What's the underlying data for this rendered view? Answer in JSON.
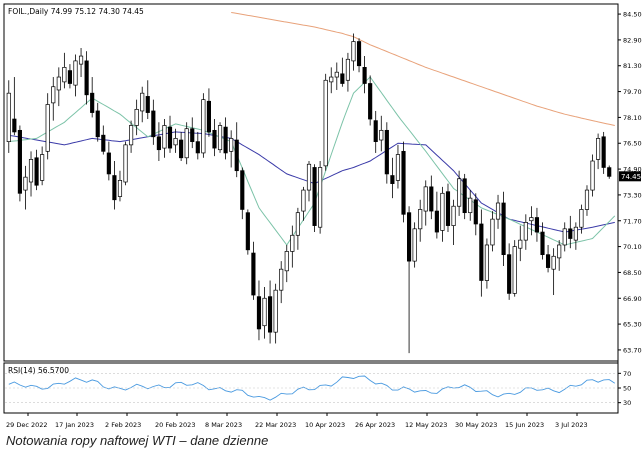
{
  "chart_header": "FOIL.,Daily  74.99 75.12 74.30 74.45",
  "caption": "Notowania ropy naftowej WTI – dane dzienne",
  "rsi_label": "RSI(14) 56.5700",
  "colors": {
    "bull_candle": "#ffffff",
    "bear_candle": "#000000",
    "candle_edge": "#000000",
    "ma_orange": "#e8a27a",
    "ma_blue": "#3a3aa8",
    "ma_teal": "#7cc3a8",
    "rsi_line": "#4a9ae0",
    "current_price_box": "#000000"
  },
  "chart_data": [
    {
      "type": "candlestick",
      "x_ticks": [
        "29 Dec 2022",
        "17 Jan 2023",
        "2 Feb 2023",
        "20 Feb 2023",
        "8 Mar 2023",
        "22 Mar 2023",
        "10 Apr 2023",
        "26 Apr 2023",
        "12 May 2023",
        "30 May 2023",
        "15 Jun 2023",
        "3 Jul 2023"
      ],
      "y_ticks": [
        "84.50",
        "82.90",
        "81.30",
        "79.70",
        "78.10",
        "76.50",
        "74.90",
        "73.30",
        "71.70",
        "70.10",
        "68.50",
        "66.90",
        "65.30",
        "63.70"
      ],
      "ylim": [
        63.2,
        85.0
      ],
      "current_price": "74.45",
      "ohlc": [
        [
          76.6,
          80.4,
          75.9,
          79.6
        ],
        [
          78.0,
          80.6,
          77.0,
          77.2
        ],
        [
          77.3,
          77.6,
          72.9,
          73.4
        ],
        [
          73.6,
          75.1,
          72.4,
          74.4
        ],
        [
          74.1,
          76.0,
          73.2,
          75.5
        ],
        [
          75.6,
          76.1,
          73.6,
          73.9
        ],
        [
          74.2,
          76.3,
          73.9,
          75.8
        ],
        [
          76.0,
          79.6,
          75.5,
          78.9
        ],
        [
          79.0,
          80.6,
          77.9,
          80.0
        ],
        [
          79.8,
          81.2,
          78.8,
          80.6
        ],
        [
          80.3,
          82.1,
          79.9,
          81.2
        ],
        [
          81.0,
          81.4,
          79.9,
          80.2
        ],
        [
          80.1,
          82.0,
          79.4,
          81.6
        ],
        [
          81.4,
          82.4,
          80.6,
          81.9
        ],
        [
          81.6,
          82.2,
          78.9,
          79.5
        ],
        [
          79.6,
          80.6,
          78.1,
          78.4
        ],
        [
          78.5,
          79.0,
          76.6,
          76.9
        ],
        [
          77.0,
          77.6,
          75.8,
          76.0
        ],
        [
          75.9,
          76.6,
          74.2,
          74.6
        ],
        [
          74.5,
          75.4,
          72.4,
          73.0
        ],
        [
          73.2,
          74.8,
          72.9,
          74.2
        ],
        [
          74.1,
          76.6,
          73.9,
          76.4
        ],
        [
          76.4,
          77.9,
          75.9,
          77.6
        ],
        [
          77.6,
          79.2,
          77.0,
          78.6
        ],
        [
          78.5,
          80.0,
          77.8,
          79.6
        ],
        [
          79.4,
          80.4,
          78.0,
          78.4
        ],
        [
          78.5,
          79.2,
          76.4,
          76.9
        ],
        [
          76.9,
          77.8,
          75.4,
          76.1
        ],
        [
          76.2,
          78.0,
          75.6,
          77.6
        ],
        [
          77.5,
          78.2,
          75.9,
          76.2
        ],
        [
          76.4,
          77.4,
          75.9,
          76.8
        ],
        [
          76.7,
          77.2,
          75.4,
          75.6
        ],
        [
          75.6,
          77.8,
          75.2,
          77.4
        ],
        [
          77.4,
          78.1,
          76.2,
          76.6
        ],
        [
          76.6,
          77.2,
          75.5,
          75.9
        ],
        [
          75.9,
          79.6,
          75.6,
          79.2
        ],
        [
          79.1,
          79.9,
          76.9,
          77.2
        ],
        [
          77.3,
          78.0,
          75.7,
          76.2
        ],
        [
          76.1,
          77.8,
          75.9,
          77.6
        ],
        [
          77.5,
          78.1,
          75.5,
          75.9
        ],
        [
          76.0,
          77.3,
          75.0,
          76.8
        ],
        [
          76.7,
          77.8,
          74.4,
          74.8
        ],
        [
          74.8,
          75.0,
          71.8,
          72.4
        ],
        [
          72.2,
          72.4,
          69.6,
          69.9
        ],
        [
          69.7,
          70.4,
          66.8,
          67.1
        ],
        [
          67.0,
          68.0,
          64.3,
          65.0
        ],
        [
          65.2,
          67.6,
          64.4,
          66.9
        ],
        [
          67.0,
          68.0,
          64.1,
          64.8
        ],
        [
          64.8,
          67.8,
          64.1,
          67.4
        ],
        [
          67.4,
          69.2,
          66.6,
          68.7
        ],
        [
          68.6,
          70.2,
          67.9,
          69.8
        ],
        [
          69.8,
          71.4,
          68.8,
          70.8
        ],
        [
          70.8,
          72.5,
          69.9,
          72.2
        ],
        [
          72.3,
          73.8,
          71.7,
          73.6
        ],
        [
          73.6,
          75.4,
          72.9,
          75.2
        ],
        [
          75.0,
          75.2,
          71.0,
          71.4
        ],
        [
          71.3,
          75.4,
          70.9,
          75.0
        ],
        [
          75.1,
          80.8,
          74.8,
          80.4
        ],
        [
          80.3,
          81.2,
          79.6,
          80.6
        ],
        [
          80.6,
          81.5,
          79.8,
          80.9
        ],
        [
          80.8,
          81.8,
          80.0,
          80.2
        ],
        [
          80.4,
          82.1,
          79.7,
          81.7
        ],
        [
          81.6,
          83.3,
          81.0,
          82.8
        ],
        [
          82.8,
          83.0,
          80.9,
          81.3
        ],
        [
          81.2,
          81.9,
          79.6,
          80.2
        ],
        [
          80.2,
          80.7,
          77.6,
          78.0
        ],
        [
          77.9,
          78.5,
          75.9,
          76.6
        ],
        [
          76.7,
          78.2,
          76.0,
          77.3
        ],
        [
          77.3,
          77.8,
          74.0,
          74.6
        ],
        [
          74.5,
          75.6,
          73.1,
          74.0
        ],
        [
          74.2,
          76.4,
          73.7,
          75.8
        ],
        [
          76.0,
          76.6,
          71.6,
          72.1
        ],
        [
          72.2,
          72.6,
          63.5,
          69.2
        ],
        [
          69.2,
          71.6,
          68.8,
          71.2
        ],
        [
          71.2,
          73.0,
          70.4,
          72.4
        ],
        [
          72.3,
          74.2,
          71.4,
          73.8
        ],
        [
          73.8,
          74.5,
          71.8,
          72.3
        ],
        [
          72.3,
          73.5,
          70.6,
          71.0
        ],
        [
          71.1,
          73.8,
          70.4,
          73.4
        ],
        [
          73.5,
          74.0,
          71.0,
          71.4
        ],
        [
          71.4,
          73.0,
          70.2,
          72.6
        ],
        [
          72.6,
          74.8,
          72.0,
          74.3
        ],
        [
          74.3,
          74.6,
          71.8,
          72.2
        ],
        [
          72.2,
          73.6,
          71.7,
          73.1
        ],
        [
          73.0,
          73.4,
          70.8,
          71.5
        ],
        [
          71.5,
          72.4,
          67.0,
          68.0
        ],
        [
          68.0,
          70.6,
          67.5,
          70.2
        ],
        [
          70.2,
          72.3,
          69.8,
          71.8
        ],
        [
          71.8,
          73.3,
          71.2,
          72.8
        ],
        [
          72.8,
          73.5,
          68.9,
          69.6
        ],
        [
          69.6,
          70.3,
          66.8,
          67.2
        ],
        [
          67.2,
          70.5,
          67.0,
          70.1
        ],
        [
          70.0,
          71.4,
          69.2,
          70.5
        ],
        [
          70.5,
          72.1,
          69.9,
          71.6
        ],
        [
          71.7,
          72.6,
          70.8,
          71.9
        ],
        [
          71.9,
          72.5,
          70.4,
          71.0
        ],
        [
          71.0,
          71.6,
          69.3,
          69.6
        ],
        [
          69.6,
          70.2,
          68.5,
          68.8
        ],
        [
          68.7,
          70.0,
          67.1,
          69.5
        ],
        [
          69.4,
          70.5,
          68.6,
          70.2
        ],
        [
          70.2,
          71.6,
          69.8,
          71.2
        ],
        [
          71.2,
          72.0,
          70.0,
          70.6
        ],
        [
          70.5,
          71.6,
          69.9,
          71.3
        ],
        [
          71.3,
          72.7,
          70.9,
          72.4
        ],
        [
          72.4,
          73.9,
          72.0,
          73.6
        ],
        [
          73.6,
          75.8,
          73.2,
          75.4
        ],
        [
          75.5,
          77.1,
          74.9,
          76.8
        ],
        [
          76.9,
          77.2,
          74.6,
          75.0
        ],
        [
          74.99,
          75.12,
          74.3,
          74.45
        ]
      ],
      "moving_averages": [
        {
          "color": "ma_orange",
          "anchors": [
            [
              40,
              84.6
            ],
            [
              45,
              84.3
            ],
            [
              50,
              84.0
            ],
            [
              55,
              83.7
            ],
            [
              60,
              83.3
            ],
            [
              62,
              83.1
            ],
            [
              65,
              82.6
            ],
            [
              70,
              81.9
            ],
            [
              75,
              81.2
            ],
            [
              80,
              80.6
            ],
            [
              85,
              80.0
            ],
            [
              90,
              79.4
            ],
            [
              95,
              78.8
            ],
            [
              100,
              78.3
            ],
            [
              105,
              77.9
            ],
            [
              109,
              77.6
            ]
          ]
        },
        {
          "color": "ma_blue",
          "anchors": [
            [
              0,
              77.0
            ],
            [
              5,
              76.7
            ],
            [
              10,
              76.4
            ],
            [
              15,
              76.8
            ],
            [
              20,
              76.6
            ],
            [
              25,
              76.9
            ],
            [
              30,
              77.2
            ],
            [
              35,
              77.1
            ],
            [
              40,
              76.8
            ],
            [
              45,
              75.8
            ],
            [
              50,
              74.6
            ],
            [
              55,
              74.0
            ],
            [
              60,
              74.8
            ],
            [
              62,
              75.0
            ],
            [
              65,
              75.4
            ],
            [
              70,
              76.5
            ],
            [
              75,
              76.4
            ],
            [
              80,
              74.8
            ],
            [
              85,
              72.8
            ],
            [
              90,
              71.8
            ],
            [
              95,
              71.4
            ],
            [
              100,
              71.0
            ],
            [
              105,
              71.3
            ],
            [
              109,
              71.6
            ]
          ]
        },
        {
          "color": "ma_teal",
          "anchors": [
            [
              0,
              76.6
            ],
            [
              5,
              76.8
            ],
            [
              10,
              77.8
            ],
            [
              15,
              79.3
            ],
            [
              20,
              78.3
            ],
            [
              25,
              76.9
            ],
            [
              30,
              77.7
            ],
            [
              35,
              77.3
            ],
            [
              40,
              76.6
            ],
            [
              45,
              72.5
            ],
            [
              50,
              70.2
            ],
            [
              55,
              72.8
            ],
            [
              60,
              77.8
            ],
            [
              62,
              79.6
            ],
            [
              65,
              80.6
            ],
            [
              70,
              78.2
            ],
            [
              75,
              76.0
            ],
            [
              80,
              73.7
            ],
            [
              85,
              72.5
            ],
            [
              90,
              71.8
            ],
            [
              95,
              71.0
            ],
            [
              100,
              70.2
            ],
            [
              105,
              70.6
            ],
            [
              109,
              72.0
            ]
          ]
        }
      ]
    },
    {
      "type": "line",
      "series": [
        {
          "name": "RSI(14)",
          "values_note": ""
        }
      ],
      "y_ticks": [
        "70",
        "50",
        "30"
      ],
      "ylim": [
        20,
        80
      ],
      "rsi_anchors": [
        [
          0,
          55
        ],
        [
          5,
          50
        ],
        [
          10,
          58
        ],
        [
          15,
          60
        ],
        [
          20,
          48
        ],
        [
          25,
          52
        ],
        [
          30,
          55
        ],
        [
          35,
          53
        ],
        [
          40,
          47
        ],
        [
          45,
          36
        ],
        [
          50,
          42
        ],
        [
          55,
          50
        ],
        [
          60,
          62
        ],
        [
          62,
          64
        ],
        [
          65,
          62
        ],
        [
          70,
          48
        ],
        [
          75,
          44
        ],
        [
          80,
          52
        ],
        [
          85,
          46
        ],
        [
          90,
          40
        ],
        [
          95,
          50
        ],
        [
          100,
          47
        ],
        [
          105,
          60
        ],
        [
          107,
          64
        ],
        [
          109,
          56.57
        ]
      ]
    }
  ]
}
